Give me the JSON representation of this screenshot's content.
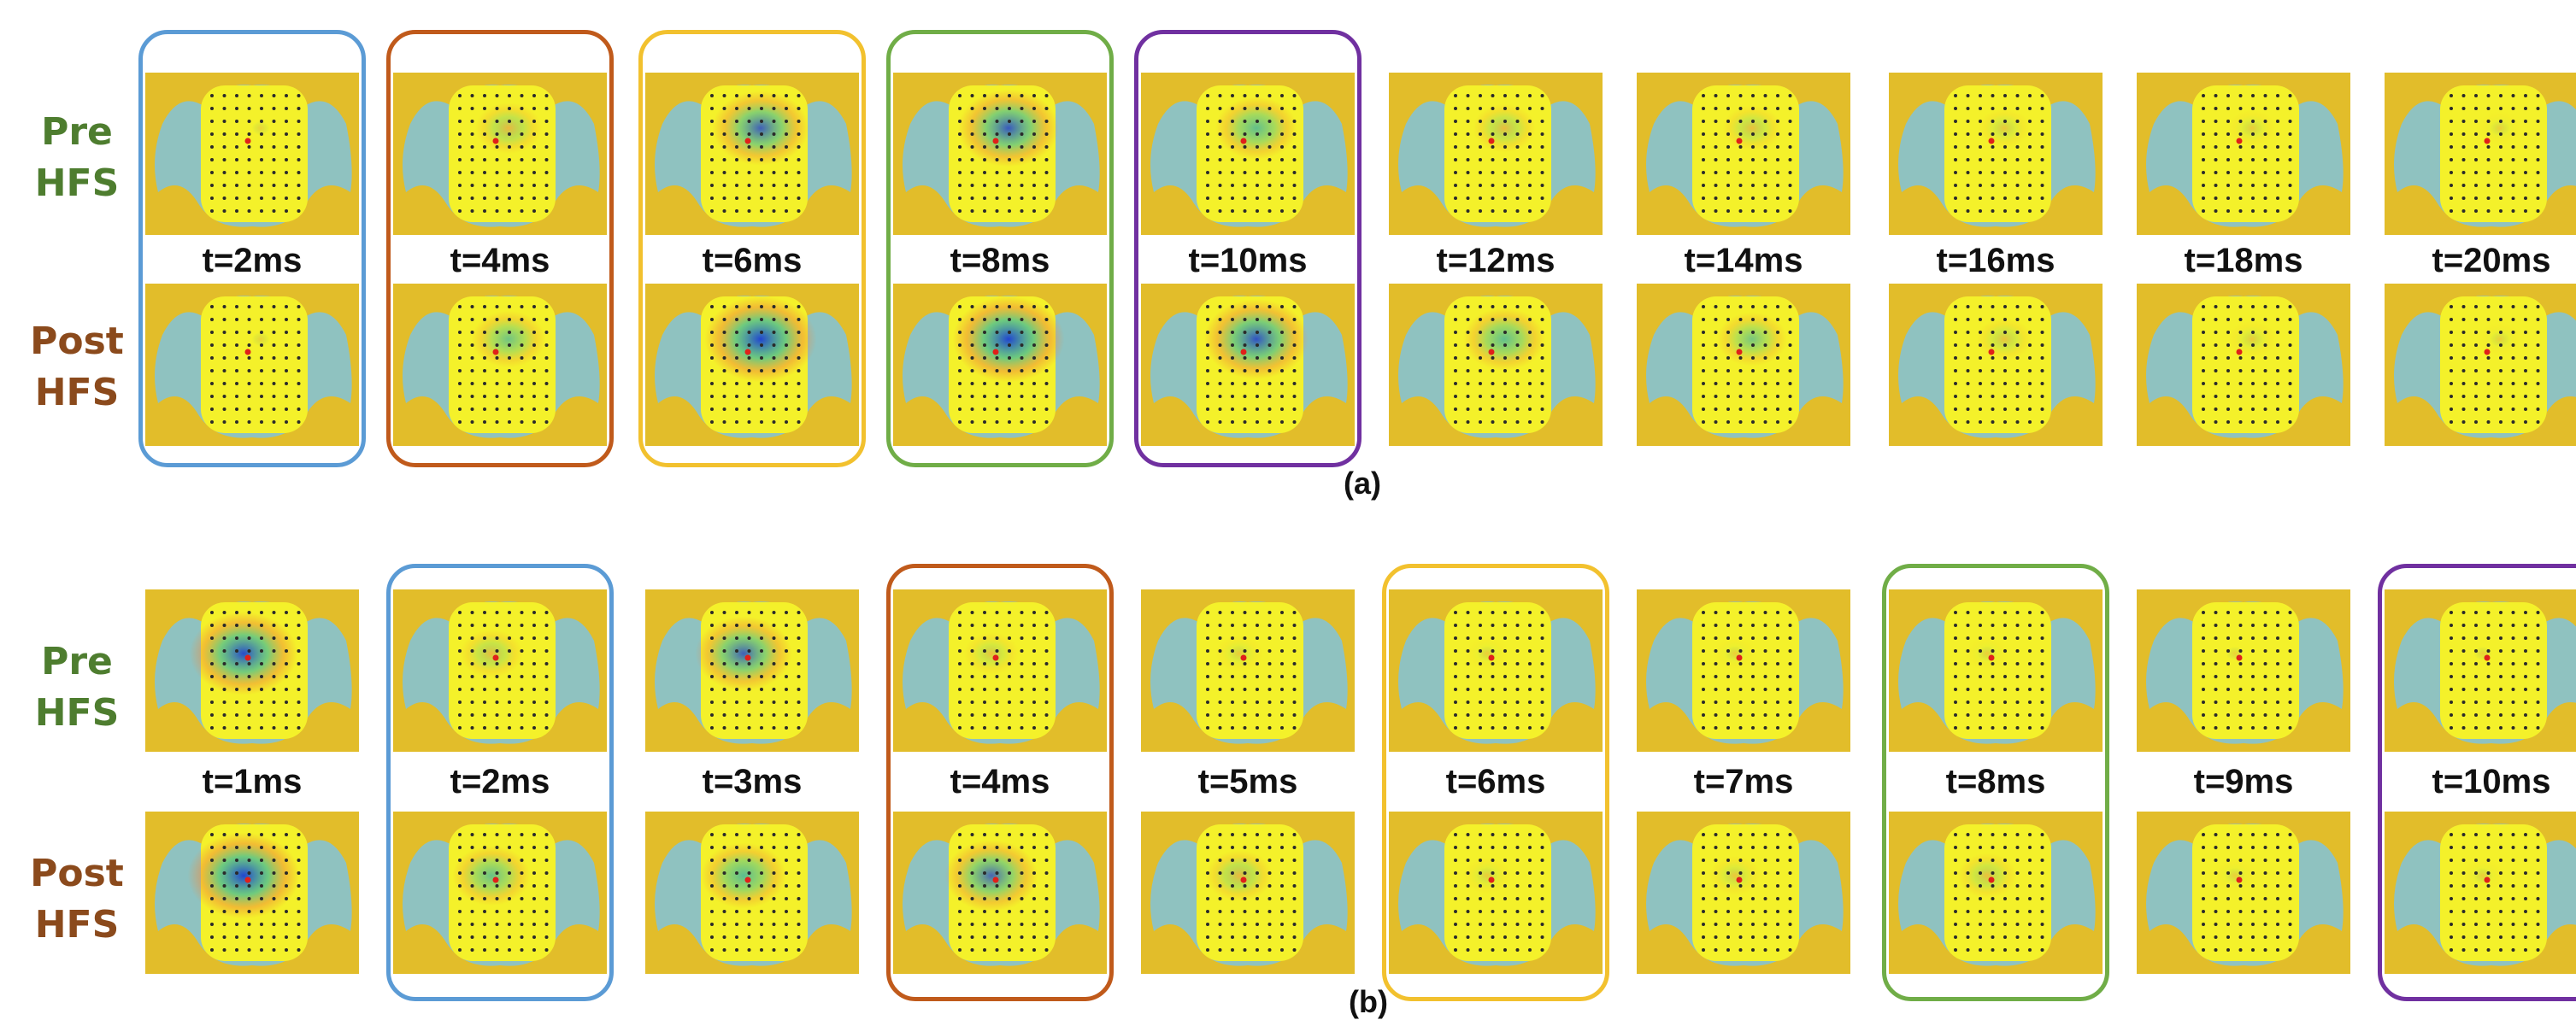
{
  "panel_a": {
    "label": "(a)",
    "row_labels": {
      "pre": [
        "Pre",
        "HFS"
      ],
      "post": [
        "Post",
        "HFS"
      ]
    },
    "times": [
      "t=2ms",
      "t=4ms",
      "t=6ms",
      "t=8ms",
      "t=10ms",
      "t=12ms",
      "t=14ms",
      "t=16ms",
      "t=18ms",
      "t=20ms"
    ],
    "highlights": [
      {
        "col": 0,
        "color": "#5b9bd5"
      },
      {
        "col": 1,
        "color": "#c05a1b"
      },
      {
        "col": 2,
        "color": "#f2c12e"
      },
      {
        "col": 3,
        "color": "#70ad47"
      },
      {
        "col": 4,
        "color": "#7030a0"
      }
    ],
    "activity_pre": [
      0.0,
      0.35,
      0.75,
      0.8,
      0.55,
      0.3,
      0.25,
      0.15,
      0.1,
      0.05
    ],
    "activity_post": [
      0.0,
      0.45,
      0.95,
      0.95,
      0.85,
      0.55,
      0.4,
      0.2,
      0.1,
      0.05
    ]
  },
  "panel_b": {
    "label": "(b)",
    "row_labels": {
      "pre": [
        "Pre",
        "HFS"
      ],
      "post": [
        "Post",
        "HFS"
      ]
    },
    "times": [
      "t=1ms",
      "t=2ms",
      "t=3ms",
      "t=4ms",
      "t=5ms",
      "t=6ms",
      "t=7ms",
      "t=8ms",
      "t=9ms",
      "t=10ms"
    ],
    "highlights": [
      {
        "col": 1,
        "color": "#5b9bd5"
      },
      {
        "col": 3,
        "color": "#c05a1b"
      },
      {
        "col": 5,
        "color": "#f2c12e"
      },
      {
        "col": 7,
        "color": "#70ad47"
      },
      {
        "col": 9,
        "color": "#7030a0"
      }
    ],
    "activity_pre": [
      0.9,
      0.3,
      0.75,
      0.2,
      0.1,
      0.05,
      0.05,
      0.05,
      0.0,
      0.0
    ],
    "activity_post": [
      0.95,
      0.5,
      0.6,
      0.7,
      0.35,
      0.1,
      0.15,
      0.25,
      0.05,
      0.05
    ]
  }
}
